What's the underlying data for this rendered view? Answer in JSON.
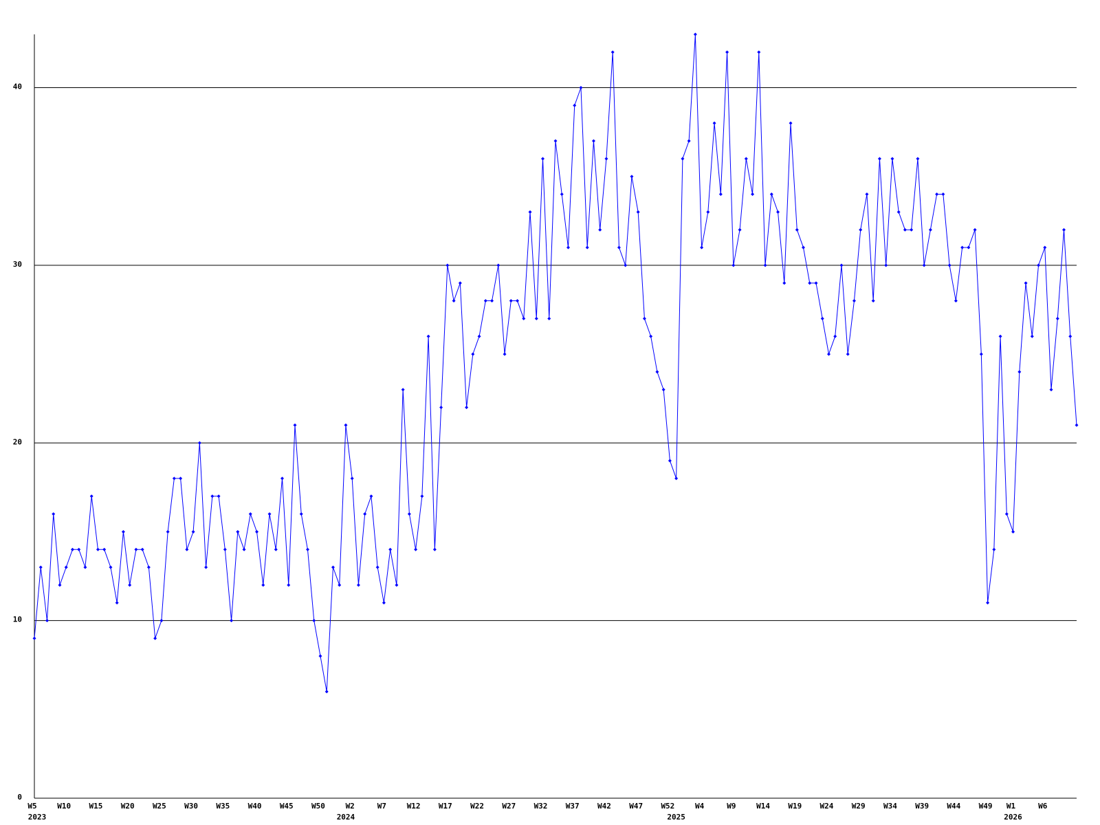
{
  "chart_data": {
    "type": "line",
    "color": "#0000ff",
    "grid": true,
    "ylim": [
      0,
      43
    ],
    "yticks": [
      0,
      10,
      20,
      30,
      40
    ],
    "categories": [
      "W5",
      null,
      null,
      null,
      null,
      "W10",
      null,
      null,
      null,
      null,
      "W15",
      null,
      null,
      null,
      null,
      "W20",
      null,
      null,
      null,
      null,
      "W25",
      null,
      null,
      null,
      null,
      "W30",
      null,
      null,
      null,
      null,
      "W35",
      null,
      null,
      null,
      null,
      "W40",
      null,
      null,
      null,
      null,
      "W45",
      null,
      null,
      null,
      null,
      "W50",
      null,
      null,
      null,
      null,
      "W2",
      null,
      null,
      null,
      null,
      "W7",
      null,
      null,
      null,
      null,
      "W12",
      null,
      null,
      null,
      null,
      "W17",
      null,
      null,
      null,
      null,
      "W22",
      null,
      null,
      null,
      null,
      "W27",
      null,
      null,
      null,
      null,
      "W32",
      null,
      null,
      null,
      null,
      "W37",
      null,
      null,
      null,
      null,
      "W42",
      null,
      null,
      null,
      null,
      "W47",
      null,
      null,
      null,
      null,
      "W52",
      null,
      null,
      null,
      null,
      "W4",
      null,
      null,
      null,
      null,
      "W9",
      null,
      null,
      null,
      null,
      "W14",
      null,
      null,
      null,
      null,
      "W19",
      null,
      null,
      null,
      null,
      "W24",
      null,
      null,
      null,
      null,
      "W29",
      null,
      null,
      null,
      null,
      "W34",
      null,
      null,
      null,
      null,
      "W39",
      null,
      null,
      null,
      null,
      "W44",
      null,
      null,
      null,
      null,
      "W49",
      null,
      null,
      null,
      "W1",
      null,
      null,
      null,
      null,
      "W6",
      null,
      null,
      null,
      null,
      null
    ],
    "category_years": [
      "2023",
      null,
      null,
      null,
      null,
      null,
      null,
      null,
      null,
      null,
      null,
      null,
      null,
      null,
      null,
      null,
      null,
      null,
      null,
      null,
      null,
      null,
      null,
      null,
      null,
      null,
      null,
      null,
      null,
      null,
      null,
      null,
      null,
      null,
      null,
      null,
      null,
      null,
      null,
      null,
      null,
      null,
      null,
      null,
      null,
      null,
      null,
      null,
      null,
      "2024",
      null,
      null,
      null,
      null,
      null,
      null,
      null,
      null,
      null,
      null,
      null,
      null,
      null,
      null,
      null,
      null,
      null,
      null,
      null,
      null,
      null,
      null,
      null,
      null,
      null,
      null,
      null,
      null,
      null,
      null,
      null,
      null,
      null,
      null,
      null,
      null,
      null,
      null,
      null,
      null,
      null,
      null,
      null,
      null,
      null,
      null,
      null,
      null,
      null,
      null,
      null,
      "2025",
      null,
      null,
      null,
      null,
      null,
      null,
      null,
      null,
      null,
      null,
      null,
      null,
      null,
      null,
      null,
      null,
      null,
      null,
      null,
      null,
      null,
      null,
      null,
      null,
      null,
      null,
      null,
      null,
      null,
      null,
      null,
      null,
      null,
      null,
      null,
      null,
      null,
      null,
      null,
      null,
      null,
      null,
      null,
      null,
      null,
      null,
      null,
      null,
      null,
      null,
      null,
      null,
      "2026",
      null,
      null,
      null,
      null,
      null,
      null,
      null,
      null,
      null,
      null
    ],
    "values": [
      9,
      13,
      10,
      16,
      12,
      13,
      14,
      14,
      13,
      17,
      14,
      14,
      13,
      11,
      15,
      12,
      14,
      14,
      13,
      9,
      10,
      15,
      18,
      18,
      14,
      15,
      20,
      13,
      17,
      17,
      14,
      10,
      15,
      14,
      16,
      15,
      12,
      16,
      14,
      18,
      12,
      21,
      16,
      14,
      10,
      8,
      6,
      13,
      12,
      21,
      18,
      12,
      16,
      17,
      13,
      11,
      14,
      12,
      23,
      16,
      14,
      17,
      26,
      14,
      22,
      30,
      28,
      29,
      22,
      25,
      26,
      28,
      28,
      30,
      25,
      28,
      28,
      27,
      33,
      27,
      36,
      27,
      37,
      34,
      31,
      39,
      40,
      31,
      37,
      32,
      36,
      42,
      31,
      30,
      35,
      33,
      27,
      26,
      24,
      23,
      19,
      18,
      36,
      37,
      43,
      31,
      33,
      38,
      34,
      42,
      30,
      32,
      36,
      34,
      42,
      30,
      34,
      33,
      29,
      38,
      32,
      31,
      29,
      29,
      27,
      25,
      26,
      30,
      25,
      28,
      32,
      34,
      28,
      36,
      30,
      36,
      33,
      32,
      32,
      36,
      30,
      32,
      34,
      34,
      30,
      28,
      31,
      31,
      32,
      25,
      11,
      14,
      26,
      16,
      15,
      24,
      29,
      26,
      30,
      31,
      23,
      27,
      32,
      26,
      21
    ]
  }
}
